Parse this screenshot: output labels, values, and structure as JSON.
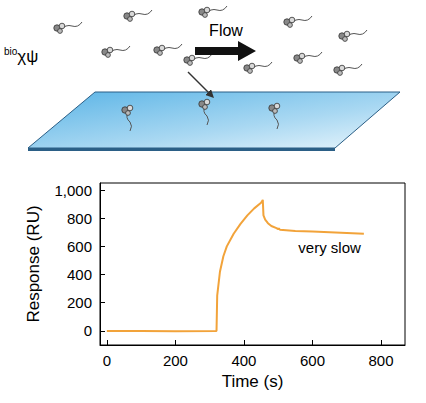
{
  "chart_data": {
    "type": "line",
    "x": [
      0,
      100,
      200,
      320,
      322,
      330,
      340,
      350,
      370,
      390,
      410,
      430,
      450,
      455,
      457,
      462,
      470,
      480,
      495,
      500,
      502,
      505,
      550,
      600,
      650,
      700,
      750
    ],
    "values": [
      0,
      0,
      -2,
      0,
      250,
      420,
      530,
      600,
      690,
      760,
      820,
      870,
      910,
      930,
      820,
      790,
      765,
      745,
      730,
      722,
      728,
      718,
      710,
      705,
      700,
      695,
      690
    ],
    "color": "#f2a33a",
    "xlabel": "Time (s)",
    "ylabel": "Response (RU)",
    "xlim": [
      -20,
      870
    ],
    "ylim": [
      -100,
      1050
    ],
    "xticks": [
      0,
      200,
      400,
      600,
      800
    ],
    "yticks": [
      0,
      200,
      400,
      600,
      800,
      {
        "value": 1000,
        "label": "1,000"
      }
    ],
    "grid": false,
    "annotations": [
      {
        "text": "very slow",
        "x": 650,
        "y": 590
      }
    ]
  },
  "diagram": {
    "molecule_label": {
      "prefix": "bio",
      "text": "χψ"
    },
    "arrow_label": "Flow"
  }
}
